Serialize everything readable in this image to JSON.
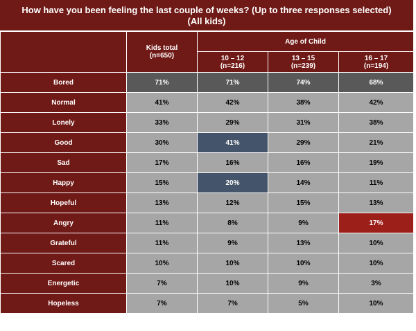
{
  "chart_data": {
    "type": "table",
    "title_line1": "How have you been feeling the last couple of weeks? (Up to three responses selected)",
    "title_line2": "(All kids)",
    "group_header": "Age of Child",
    "columns": [
      {
        "label": "Kids total",
        "n": "(n=650)"
      },
      {
        "label": "10 – 12",
        "n": "(n=216)"
      },
      {
        "label": "13 – 15",
        "n": "(n=239)"
      },
      {
        "label": "16 – 17",
        "n": "(n=194)"
      }
    ],
    "rows": [
      {
        "label": "Bored",
        "values": [
          "71%",
          "71%",
          "74%",
          "68%"
        ],
        "styles": [
          "dark",
          "dark",
          "dark",
          "dark"
        ]
      },
      {
        "label": "Normal",
        "values": [
          "41%",
          "42%",
          "38%",
          "42%"
        ],
        "styles": [
          "",
          "",
          "",
          ""
        ]
      },
      {
        "label": "Lonely",
        "values": [
          "33%",
          "29%",
          "31%",
          "38%"
        ],
        "styles": [
          "",
          "",
          "",
          ""
        ]
      },
      {
        "label": "Good",
        "values": [
          "30%",
          "41%",
          "29%",
          "21%"
        ],
        "styles": [
          "",
          "blue",
          "",
          ""
        ]
      },
      {
        "label": "Sad",
        "values": [
          "17%",
          "16%",
          "16%",
          "19%"
        ],
        "styles": [
          "",
          "",
          "",
          ""
        ]
      },
      {
        "label": "Happy",
        "values": [
          "15%",
          "20%",
          "14%",
          "11%"
        ],
        "styles": [
          "",
          "blue",
          "",
          ""
        ]
      },
      {
        "label": "Hopeful",
        "values": [
          "13%",
          "12%",
          "15%",
          "13%"
        ],
        "styles": [
          "",
          "",
          "",
          ""
        ]
      },
      {
        "label": "Angry",
        "values": [
          "11%",
          "8%",
          "9%",
          "17%"
        ],
        "styles": [
          "",
          "",
          "",
          "red"
        ]
      },
      {
        "label": "Grateful",
        "values": [
          "11%",
          "9%",
          "13%",
          "10%"
        ],
        "styles": [
          "",
          "",
          "",
          ""
        ]
      },
      {
        "label": "Scared",
        "values": [
          "10%",
          "10%",
          "10%",
          "10%"
        ],
        "styles": [
          "",
          "",
          "",
          ""
        ]
      },
      {
        "label": "Energetic",
        "values": [
          "7%",
          "10%",
          "9%",
          "3%"
        ],
        "styles": [
          "",
          "",
          "",
          ""
        ]
      },
      {
        "label": "Hopeless",
        "values": [
          "7%",
          "7%",
          "5%",
          "10%"
        ],
        "styles": [
          "",
          "",
          "",
          ""
        ]
      }
    ]
  }
}
